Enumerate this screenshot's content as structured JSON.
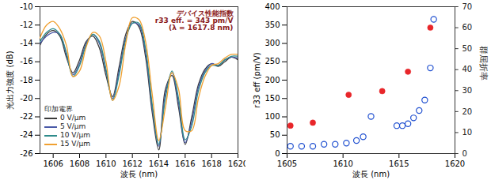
{
  "chart_data": [
    {
      "type": "line",
      "xlabel": "波長 (nm)",
      "ylabel": "光出力強度 (dB)",
      "x": [
        1605,
        1605.5,
        1606,
        1606.5,
        1607,
        1607.5,
        1608,
        1608.5,
        1609,
        1609.5,
        1610,
        1610.5,
        1611,
        1611.5,
        1612,
        1612.5,
        1613,
        1613.5,
        1614,
        1614.5,
        1615,
        1615.5,
        1616,
        1616.5,
        1617,
        1617.5,
        1618,
        1618.5,
        1619,
        1619.5,
        1620
      ],
      "series": [
        {
          "name": "0 V/μm",
          "color": "#3a3a3a",
          "values": [
            -14.2,
            -13.0,
            -12.6,
            -13.2,
            -15.5,
            -17.2,
            -15.8,
            -13.8,
            -13.2,
            -14.5,
            -17.5,
            -19.8,
            -16.5,
            -13.0,
            -11.6,
            -12.2,
            -15.5,
            -21.5,
            -25.6,
            -19.0,
            -17.5,
            -21.0,
            -25.0,
            -22.0,
            -18.5,
            -16.8,
            -16.2,
            -16.5,
            -16.0,
            -15.5,
            -15.8
          ]
        },
        {
          "name": "5 V/μm",
          "color": "#4a5aa8",
          "values": [
            -14.0,
            -13.2,
            -12.8,
            -13.0,
            -15.2,
            -17.4,
            -16.2,
            -14.0,
            -13.0,
            -14.0,
            -17.0,
            -20.0,
            -17.0,
            -13.4,
            -11.8,
            -12.0,
            -15.0,
            -21.0,
            -25.2,
            -19.5,
            -17.2,
            -20.5,
            -24.8,
            -22.5,
            -18.8,
            -17.0,
            -16.2,
            -16.4,
            -15.8,
            -15.5,
            -15.6
          ]
        },
        {
          "name": "10 V/μm",
          "color": "#2e8b8b",
          "values": [
            -13.8,
            -12.8,
            -12.4,
            -13.0,
            -15.0,
            -17.6,
            -16.4,
            -14.2,
            -13.0,
            -13.8,
            -16.8,
            -20.2,
            -17.4,
            -13.6,
            -11.8,
            -11.8,
            -14.6,
            -20.6,
            -25.0,
            -20.0,
            -17.0,
            -20.0,
            -24.5,
            -23.0,
            -19.2,
            -17.2,
            -16.4,
            -16.4,
            -15.8,
            -15.4,
            -15.4
          ]
        },
        {
          "name": "15 V/μm",
          "color": "#f0a030",
          "values": [
            -13.4,
            -12.0,
            -11.6,
            -12.4,
            -14.2,
            -17.6,
            -17.0,
            -14.4,
            -12.8,
            -13.2,
            -16.0,
            -20.2,
            -18.6,
            -14.0,
            -11.2,
            -11.4,
            -13.8,
            -19.5,
            -24.6,
            -21.0,
            -17.2,
            -19.0,
            -23.5,
            -23.5,
            -20.0,
            -17.6,
            -16.4,
            -16.2,
            -15.6,
            -15.2,
            -15.2
          ]
        }
      ],
      "xlim": [
        1605,
        1620
      ],
      "xticks": [
        1606,
        1608,
        1610,
        1612,
        1614,
        1616,
        1618,
        1620
      ],
      "ylim": [
        -26,
        -10
      ],
      "yticks": [
        -26,
        -24,
        -22,
        -20,
        -18,
        -16,
        -14,
        -12,
        -10
      ],
      "legend": "lower left",
      "legend_title": "印加電界",
      "annotations": [
        "デバイス性能指数",
        "r33 eff. = 343 pm/V",
        "(λ = 1617.8 nm)"
      ]
    },
    {
      "type": "scatter",
      "xlabel": "波長 (nm)",
      "xlim": [
        1605,
        1620
      ],
      "xticks": [
        1605,
        1610,
        1615,
        1620
      ],
      "ylim": [
        0,
        400
      ],
      "yticks": [
        0,
        50,
        100,
        150,
        200,
        250,
        300,
        350,
        400
      ],
      "y2lim": [
        0,
        70
      ],
      "y2ticks": [
        0,
        10,
        20,
        30,
        40,
        50,
        60,
        70
      ],
      "series": [
        {
          "name": "r33 eff (pm/V)",
          "color": "#e8262a",
          "marker": "filled circle",
          "x": [
            1605.3,
            1607.3,
            1610.5,
            1613.5,
            1615.8,
            1617.8
          ],
          "values": [
            76,
            84,
            160,
            170,
            223,
            343
          ]
        },
        {
          "name": "群屈折率",
          "axis": "y2",
          "color": "#2050d0",
          "marker": "open circle",
          "x": [
            1605.3,
            1606.3,
            1607.3,
            1608.3,
            1609.3,
            1610.3,
            1611.2,
            1611.8,
            1612.5,
            1614.8,
            1615.3,
            1615.8,
            1616.3,
            1616.8,
            1617.3,
            1617.8,
            1618.1
          ],
          "values": [
            3.5,
            3.5,
            3.5,
            4.4,
            4.4,
            5.0,
            6.2,
            8.0,
            17.7,
            13.3,
            13.3,
            14.2,
            17.0,
            20.5,
            25.5,
            40.8,
            64
          ]
        }
      ]
    }
  ]
}
